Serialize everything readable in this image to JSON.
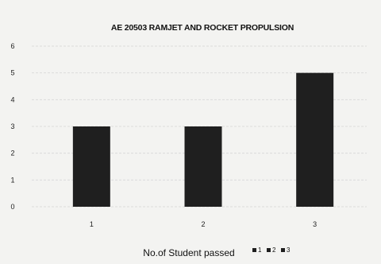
{
  "chart_data": {
    "type": "bar",
    "title": "AE 20503 RAMJET AND ROCKET PROPULSION",
    "categories": [
      "1",
      "2",
      "3"
    ],
    "series": [
      {
        "name": "1",
        "values": [
          3,
          null,
          null
        ]
      },
      {
        "name": "2",
        "values": [
          null,
          3,
          null
        ]
      },
      {
        "name": "3",
        "values": [
          null,
          null,
          5
        ]
      }
    ],
    "values": [
      3,
      3,
      5
    ],
    "xlabel": "No.of Student passed",
    "ylabel": "",
    "ylim": [
      0,
      6
    ],
    "yticks": [
      "0",
      "1",
      "2",
      "3",
      "4",
      "5",
      "6"
    ],
    "grid": true,
    "legend_position": "bottom",
    "colors": {
      "bar": "#1f1f1f",
      "grid": "#dcdcdc",
      "background": "#f3f3f1",
      "text": "#111111"
    }
  }
}
